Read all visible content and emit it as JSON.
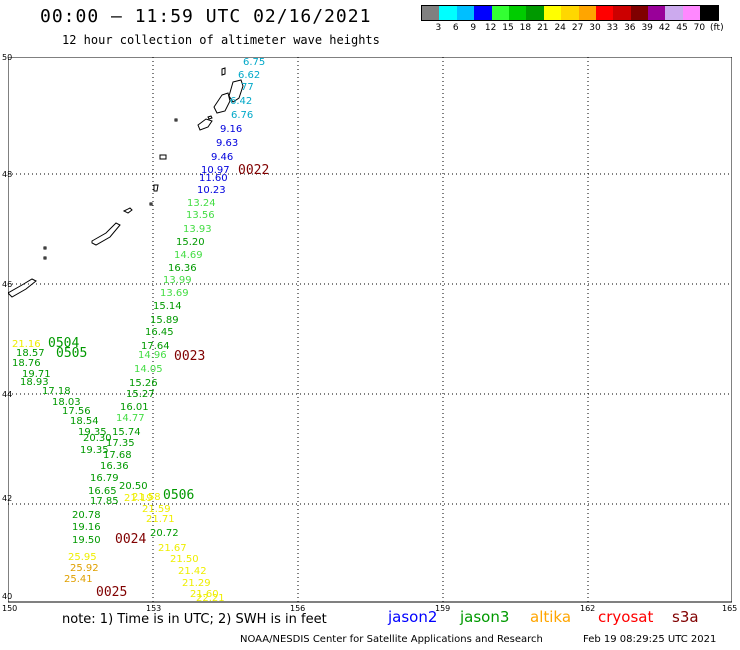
{
  "header": {
    "title": "00:00 – 11:59 UTC 02/16/2021",
    "subtitle": "12 hour collection of altimeter wave heights"
  },
  "legend": {
    "colors": [
      "#808080",
      "#00ffff",
      "#00bfff",
      "#0000ff",
      "#33ff33",
      "#00cc00",
      "#009900",
      "#ffff00",
      "#ffd700",
      "#ffa500",
      "#ff0000",
      "#cc0000",
      "#800000",
      "#990099",
      "#ccaaee",
      "#ff88ff",
      "#000000"
    ],
    "labels": [
      "3",
      "6",
      "9",
      "12",
      "15",
      "18",
      "21",
      "24",
      "27",
      "30",
      "33",
      "36",
      "39",
      "42",
      "45",
      "70",
      "(ft)"
    ]
  },
  "axes": {
    "lat_labels": [
      "50",
      "48",
      "46",
      "44",
      "42",
      "40"
    ],
    "lon_labels": [
      "150",
      "153",
      "156",
      "159",
      "162",
      "165"
    ]
  },
  "wave_colors": {
    "cyan": "#00a8c8",
    "blue": "#0000dd",
    "lightgreen": "#44dd44",
    "green": "#009900",
    "yellow": "#eeee00",
    "gold": "#e0a000",
    "maroon": "#800000"
  },
  "wave_labels": [
    {
      "t": "6.75",
      "c": "cyan"
    },
    {
      "t": "6.62",
      "c": "cyan"
    },
    {
      "t": "77",
      "c": "cyan"
    },
    {
      "t": "6.42",
      "c": "cyan"
    },
    {
      "t": "6.76",
      "c": "cyan"
    },
    {
      "t": "9.16",
      "c": "blue"
    },
    {
      "t": "9.63",
      "c": "blue"
    },
    {
      "t": "9.46",
      "c": "blue"
    },
    {
      "t": "10.97",
      "c": "blue"
    },
    {
      "t": "11.60",
      "c": "blue"
    },
    {
      "t": "10.23",
      "c": "blue"
    },
    {
      "t": "13.24",
      "c": "lightgreen"
    },
    {
      "t": "13.56",
      "c": "lightgreen"
    },
    {
      "t": "13.93",
      "c": "lightgreen"
    },
    {
      "t": "15.20",
      "c": "green"
    },
    {
      "t": "14.69",
      "c": "lightgreen"
    },
    {
      "t": "16.36",
      "c": "green"
    },
    {
      "t": "13.99",
      "c": "lightgreen"
    },
    {
      "t": "13.69",
      "c": "lightgreen"
    },
    {
      "t": "15.14",
      "c": "green"
    },
    {
      "t": "15.89",
      "c": "green"
    },
    {
      "t": "16.45",
      "c": "green"
    },
    {
      "t": "17.64",
      "c": "green"
    },
    {
      "t": "14.96",
      "c": "lightgreen"
    },
    {
      "t": "14.05",
      "c": "lightgreen"
    },
    {
      "t": "15.26",
      "c": "green"
    },
    {
      "t": "15.27",
      "c": "green"
    },
    {
      "t": "16.01",
      "c": "green"
    },
    {
      "t": "14.77",
      "c": "lightgreen"
    },
    {
      "t": "15.74",
      "c": "green"
    },
    {
      "t": "17.35",
      "c": "green"
    },
    {
      "t": "17.68",
      "c": "green"
    },
    {
      "t": "16.36",
      "c": "green"
    },
    {
      "t": "20.50",
      "c": "green"
    },
    {
      "t": "21.19",
      "c": "yellow"
    },
    {
      "t": "21.16",
      "c": "yellow"
    },
    {
      "t": "18.57",
      "c": "green"
    },
    {
      "t": "18.76",
      "c": "green"
    },
    {
      "t": "19.71",
      "c": "green"
    },
    {
      "t": "18.93",
      "c": "green"
    },
    {
      "t": "17.18",
      "c": "green"
    },
    {
      "t": "18.03",
      "c": "green"
    },
    {
      "t": "17.56",
      "c": "green"
    },
    {
      "t": "18.54",
      "c": "green"
    },
    {
      "t": "19.35",
      "c": "green"
    },
    {
      "t": "20.30",
      "c": "green"
    },
    {
      "t": "19.35",
      "c": "green"
    },
    {
      "t": "16.79",
      "c": "green"
    },
    {
      "t": "16.65",
      "c": "green"
    },
    {
      "t": "17.85",
      "c": "green"
    },
    {
      "t": "20.78",
      "c": "green"
    },
    {
      "t": "19.16",
      "c": "green"
    },
    {
      "t": "19.50",
      "c": "green"
    },
    {
      "t": "20.72",
      "c": "green"
    },
    {
      "t": "21.58",
      "c": "yellow"
    },
    {
      "t": "21.59",
      "c": "yellow"
    },
    {
      "t": "21.71",
      "c": "yellow"
    },
    {
      "t": "21.67",
      "c": "yellow"
    },
    {
      "t": "21.50",
      "c": "yellow"
    },
    {
      "t": "21.42",
      "c": "yellow"
    },
    {
      "t": "21.29",
      "c": "yellow"
    },
    {
      "t": "21.60",
      "c": "yellow"
    },
    {
      "t": "22.21",
      "c": "yellow"
    },
    {
      "t": "25.95",
      "c": "yellow"
    },
    {
      "t": "25.92",
      "c": "gold"
    },
    {
      "t": "25.41",
      "c": "gold"
    }
  ],
  "track_ids": [
    {
      "t": "0022",
      "c": "maroon"
    },
    {
      "t": "0504",
      "c": "green"
    },
    {
      "t": "0505",
      "c": "green"
    },
    {
      "t": "0023",
      "c": "maroon"
    },
    {
      "t": "0506",
      "c": "green"
    },
    {
      "t": "0024",
      "c": "maroon"
    },
    {
      "t": "0025",
      "c": "maroon"
    }
  ],
  "footer": {
    "note": "note: 1) Time is in UTC; 2) SWH is in feet",
    "satellites": [
      {
        "name": "jason2",
        "color": "#0000ff"
      },
      {
        "name": "jason3",
        "color": "#009900"
      },
      {
        "name": "altika",
        "color": "#ffa500"
      },
      {
        "name": "cryosat",
        "color": "#ff0000"
      },
      {
        "name": "s3a",
        "color": "#800000"
      }
    ],
    "credit": "NOAA/NESDIS Center for Satellite Applications and Research",
    "timestamp": "Feb 19 08:29:25 UTC 2021"
  }
}
